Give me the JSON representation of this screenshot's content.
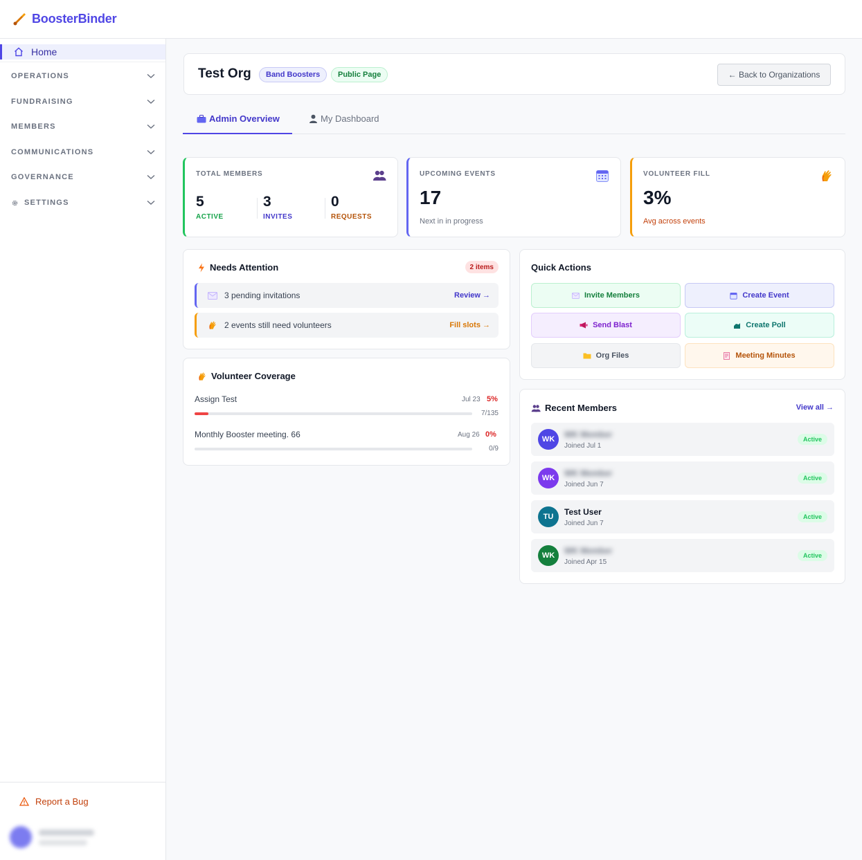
{
  "app": {
    "name": "BoosterBinder"
  },
  "sidebar": {
    "home_label": "Home",
    "sections": [
      {
        "label": "OPERATIONS"
      },
      {
        "label": "FUNDRAISING"
      },
      {
        "label": "MEMBERS"
      },
      {
        "label": "COMMUNICATIONS"
      },
      {
        "label": "GOVERNANCE"
      },
      {
        "label": "SETTINGS"
      }
    ],
    "report_bug_label": "Report a Bug"
  },
  "org": {
    "name": "Test Org",
    "badge_type": "Band Boosters",
    "badge_public": "Public Page",
    "back_label": "← Back to Organizations"
  },
  "tabs": [
    {
      "label": "Admin Overview"
    },
    {
      "label": "My Dashboard"
    }
  ],
  "stats": {
    "members": {
      "title": "TOTAL MEMBERS",
      "active": {
        "value": "5",
        "label": "ACTIVE"
      },
      "invites": {
        "value": "3",
        "label": "INVITES"
      },
      "requests": {
        "value": "0",
        "label": "REQUESTS"
      }
    },
    "events": {
      "title": "UPCOMING EVENTS",
      "value": "17",
      "sub": "Next in in progress"
    },
    "volunteer": {
      "title": "VOLUNTEER FILL",
      "value": "3%",
      "sub": "Avg across events"
    }
  },
  "attention": {
    "title": "Needs Attention",
    "badge": "2 items",
    "items": [
      {
        "text": "3 pending invitations",
        "action": "Review →"
      },
      {
        "text": "2 events still need volunteers",
        "action": "Fill slots →"
      }
    ]
  },
  "coverage": {
    "title": "Volunteer Coverage",
    "items": [
      {
        "name": "Assign Test",
        "date": "Jul 23",
        "pct": "5%",
        "fill": 0.05,
        "count": "7/135"
      },
      {
        "name": "Monthly Booster meeting. 66",
        "date": "Aug 26",
        "pct": "0%",
        "fill": 0,
        "count": "0/9"
      }
    ]
  },
  "quick_actions": {
    "title": "Quick Actions",
    "buttons": [
      {
        "label": "Invite Members"
      },
      {
        "label": "Create Event"
      },
      {
        "label": "Send Blast"
      },
      {
        "label": "Create Poll"
      },
      {
        "label": "Org Files"
      },
      {
        "label": "Meeting Minutes"
      }
    ]
  },
  "recent_members": {
    "title": "Recent Members",
    "view_all": "View all →",
    "members": [
      {
        "initials": "WK",
        "name": "",
        "joined": "Joined Jul 1",
        "status": "Active",
        "color": "#4f46e5"
      },
      {
        "initials": "WK",
        "name": "",
        "joined": "Joined Jun 7",
        "status": "Active",
        "color": "#7c3aed"
      },
      {
        "initials": "TU",
        "name": "Test User",
        "joined": "Joined Jun 7",
        "status": "Active",
        "color": "#0e7490"
      },
      {
        "initials": "WK",
        "name": "",
        "joined": "Joined Apr 15",
        "status": "Active",
        "color": "#15803d"
      }
    ]
  }
}
